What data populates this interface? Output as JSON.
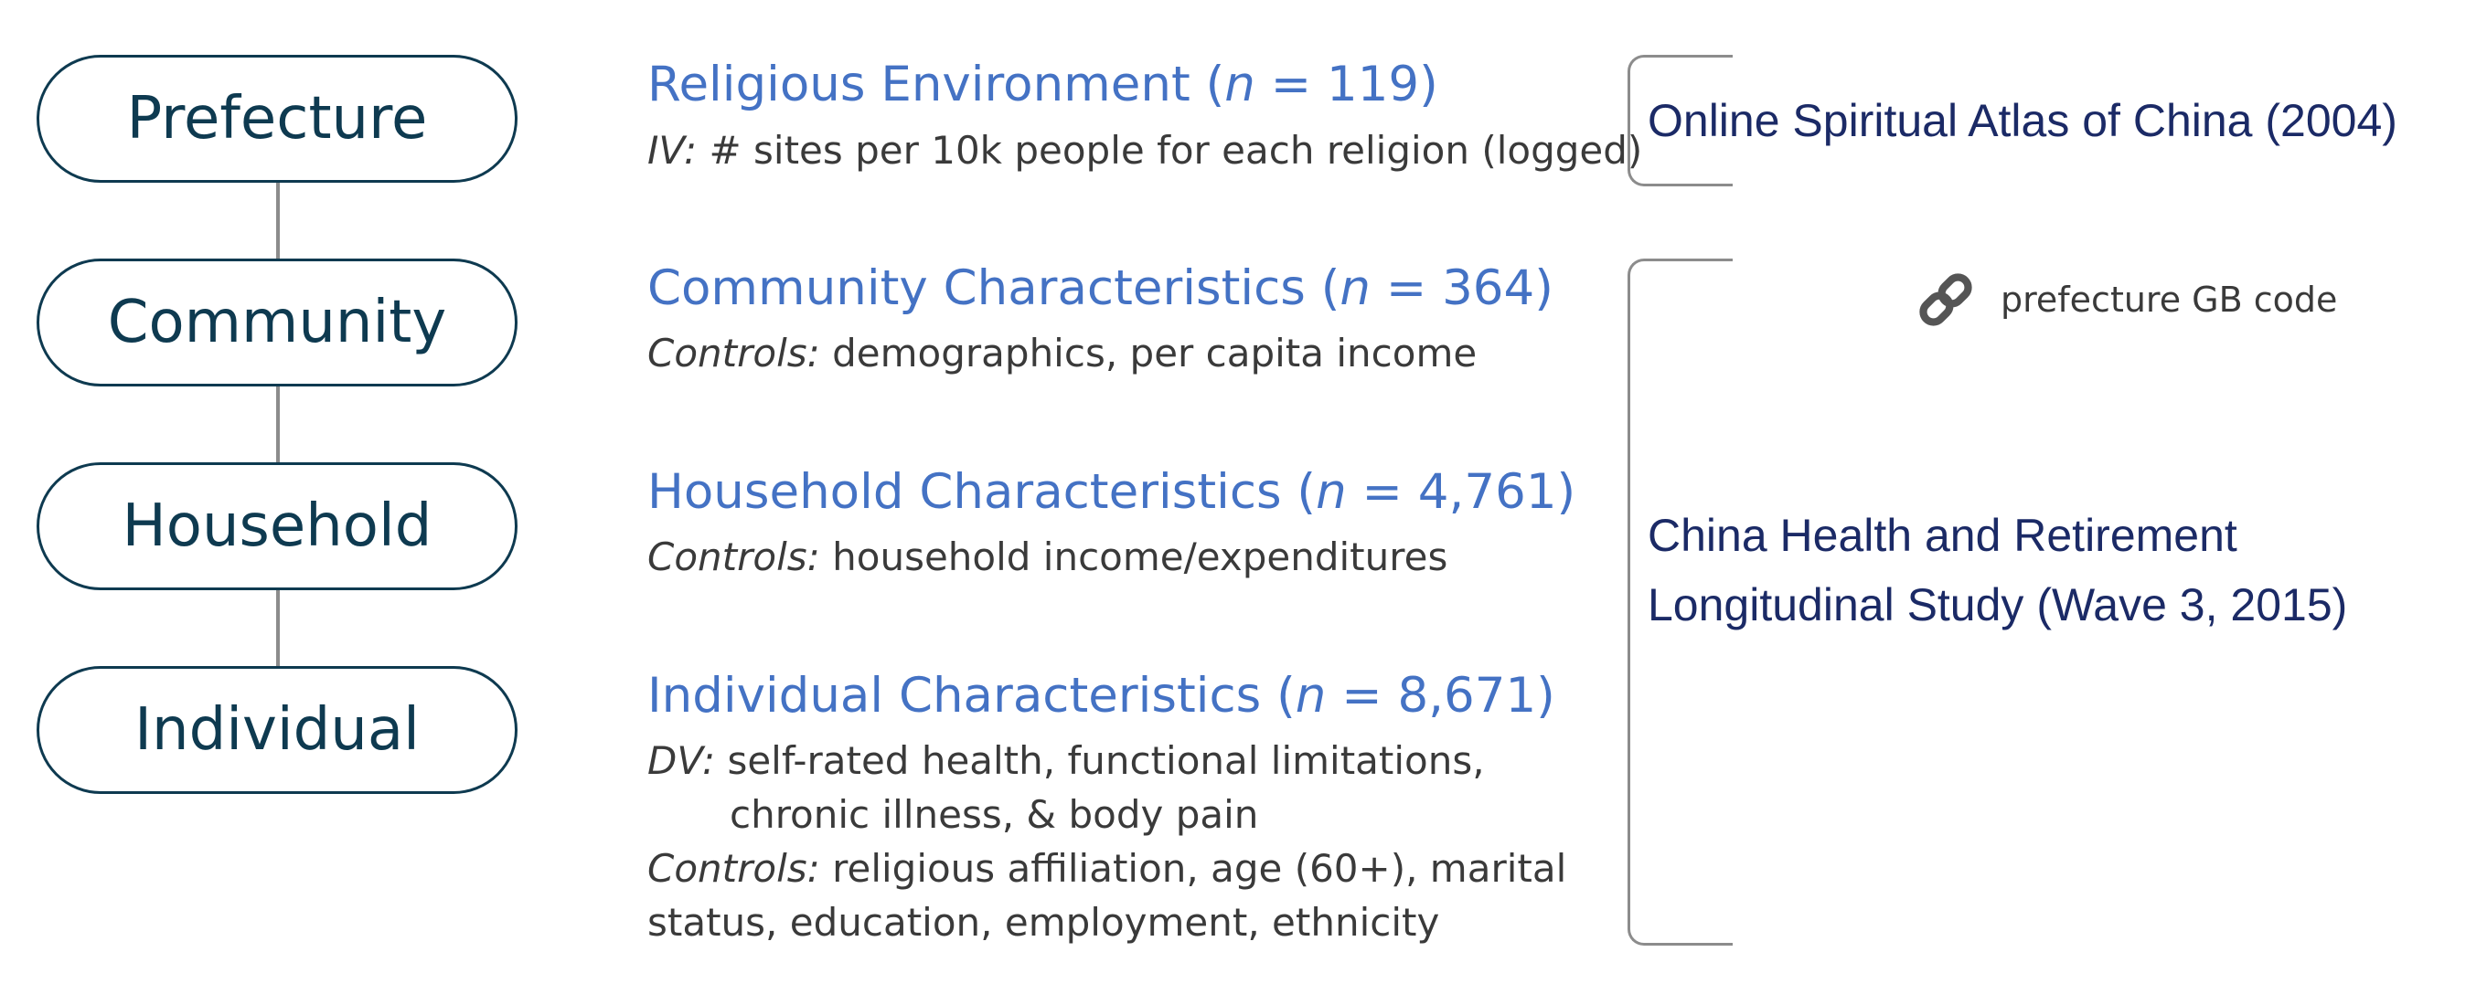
{
  "levels": [
    "Prefecture",
    "Community",
    "Household",
    "Individual"
  ],
  "rows": {
    "r1": {
      "title": "Religious Environment (",
      "n": "n",
      "eq": " = 119)",
      "label": "IV:",
      "text": " # sites per 10k people for each religion (logged)"
    },
    "r2": {
      "title": "Community Characteristics (",
      "n": "n",
      "eq": " = 364)",
      "label": "Controls:",
      "text": " demographics, per capita income"
    },
    "r3": {
      "title": "Household Characteristics (",
      "n": "n",
      "eq": " = 4,761)",
      "label": "Controls:",
      "text": " household income/expenditures"
    },
    "r4": {
      "title": "Individual Characteristics (",
      "n": "n",
      "eq": " = 8,671)",
      "label": "DV:",
      "text": " self-rated health, functional limitations,",
      "text2": "chronic illness, & body pain",
      "label2": "Controls:",
      "text3": " religious affiliation, age (60+), marital",
      "text4": "status, education, employment, ethnicity"
    }
  },
  "sources": {
    "atlas": "Online Spiritual Atlas of China (2004)",
    "charls_line1": "China Health and Retirement",
    "charls_line2": "Longitudinal Study (Wave 3, 2015)"
  },
  "link": {
    "icon": "link-icon",
    "label": "prefecture GB code"
  },
  "colors": {
    "level": "#0e3a50",
    "heading": "#4472c4",
    "source": "#1b2a66",
    "connector": "#8c8c8c"
  }
}
